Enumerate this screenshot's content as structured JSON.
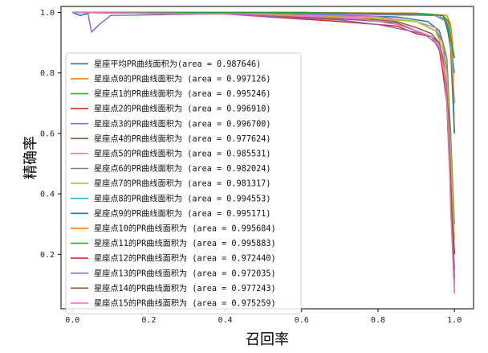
{
  "chart_data": {
    "type": "line",
    "xlabel": "召回率",
    "ylabel": "精确率",
    "xlim": [
      -0.03,
      1.05
    ],
    "ylim": [
      0.02,
      1.02
    ],
    "xticks": [
      0.0,
      0.2,
      0.4,
      0.6,
      0.8,
      1.0
    ],
    "xtick_labels": [
      "0.0",
      "0.2",
      "0.4",
      "0.6",
      "0.8",
      "1.0"
    ],
    "yticks": [
      0.2,
      0.4,
      0.6,
      0.8,
      1.0
    ],
    "ytick_labels": [
      "0.2",
      "0.4",
      "0.6",
      "0.8",
      "1.0"
    ],
    "legend_position": "lower-left",
    "series": [
      {
        "name": "星座平均PR曲线面积为(area = 0.987646)",
        "color": "#1f77b4",
        "points": [
          [
            0.0,
            1.0
          ],
          [
            0.02,
            0.99
          ],
          [
            0.05,
            1.0
          ],
          [
            0.4,
            0.998
          ],
          [
            0.7,
            0.99
          ],
          [
            0.85,
            0.985
          ],
          [
            0.93,
            0.97
          ],
          [
            0.96,
            0.94
          ],
          [
            0.97,
            0.9
          ],
          [
            0.98,
            0.8
          ],
          [
            0.99,
            0.6
          ],
          [
            0.995,
            0.3
          ],
          [
            1.0,
            0.1
          ]
        ]
      },
      {
        "name": "星座点0的PR曲线面积为 (area = 0.997126)",
        "color": "#ff7f0e",
        "points": [
          [
            0.0,
            1.0
          ],
          [
            0.5,
            1.0
          ],
          [
            0.9,
            0.998
          ],
          [
            0.98,
            0.99
          ],
          [
            0.99,
            0.96
          ],
          [
            0.995,
            0.9
          ],
          [
            0.998,
            0.7
          ],
          [
            1.0,
            0.6
          ]
        ]
      },
      {
        "name": "星座点1的PR曲线面积为 (area = 0.995246)",
        "color": "#2ca02c",
        "points": [
          [
            0.0,
            1.0
          ],
          [
            0.6,
            1.0
          ],
          [
            0.9,
            0.995
          ],
          [
            0.97,
            0.99
          ],
          [
            0.98,
            0.95
          ],
          [
            0.99,
            0.9
          ],
          [
            1.0,
            0.85
          ]
        ]
      },
      {
        "name": "星座点2的PR曲线面积为 (area = 0.996910)",
        "color": "#d62728",
        "points": [
          [
            0.0,
            1.0
          ],
          [
            0.6,
            1.0
          ],
          [
            0.92,
            0.995
          ],
          [
            0.97,
            0.99
          ],
          [
            0.985,
            0.96
          ],
          [
            0.99,
            0.9
          ],
          [
            1.0,
            0.8
          ]
        ]
      },
      {
        "name": "星座点3的PR曲线面积为 (area = 0.996700)",
        "color": "#9467bd",
        "points": [
          [
            0.0,
            1.0
          ],
          [
            0.04,
            1.0
          ],
          [
            0.05,
            0.935
          ],
          [
            0.07,
            0.96
          ],
          [
            0.1,
            0.99
          ],
          [
            0.5,
            0.998
          ],
          [
            0.95,
            0.99
          ],
          [
            0.98,
            0.97
          ],
          [
            0.99,
            0.9
          ],
          [
            1.0,
            0.7
          ]
        ]
      },
      {
        "name": "星座点4的PR曲线面积为 (area = 0.977624)",
        "color": "#8c564b",
        "points": [
          [
            0.0,
            1.0
          ],
          [
            0.5,
            0.995
          ],
          [
            0.75,
            0.98
          ],
          [
            0.85,
            0.97
          ],
          [
            0.9,
            0.95
          ],
          [
            0.94,
            0.93
          ],
          [
            0.96,
            0.9
          ],
          [
            0.97,
            0.85
          ],
          [
            0.98,
            0.75
          ],
          [
            0.99,
            0.5
          ],
          [
            1.0,
            0.2
          ]
        ]
      },
      {
        "name": "星座点5的PR曲线面积为 (area = 0.985531)",
        "color": "#e377c2",
        "points": [
          [
            0.0,
            1.0
          ],
          [
            0.5,
            0.995
          ],
          [
            0.8,
            0.985
          ],
          [
            0.9,
            0.97
          ],
          [
            0.95,
            0.95
          ],
          [
            0.97,
            0.9
          ],
          [
            0.98,
            0.7
          ],
          [
            0.985,
            0.62
          ],
          [
            0.99,
            0.55
          ],
          [
            1.0,
            0.07
          ]
        ]
      },
      {
        "name": "星座点6的PR曲线面积为 (area = 0.982024)",
        "color": "#7f7f7f",
        "points": [
          [
            0.0,
            1.0
          ],
          [
            0.5,
            0.995
          ],
          [
            0.8,
            0.98
          ],
          [
            0.9,
            0.97
          ],
          [
            0.95,
            0.94
          ],
          [
            0.97,
            0.9
          ],
          [
            0.98,
            0.85
          ],
          [
            0.99,
            0.6
          ],
          [
            1.0,
            0.3
          ]
        ]
      },
      {
        "name": "星座点7的PR曲线面积为 (area = 0.981317)",
        "color": "#bcbd22",
        "points": [
          [
            0.0,
            1.0
          ],
          [
            0.5,
            0.995
          ],
          [
            0.8,
            0.98
          ],
          [
            0.9,
            0.97
          ],
          [
            0.95,
            0.94
          ],
          [
            0.97,
            0.88
          ],
          [
            0.98,
            0.8
          ],
          [
            0.99,
            0.55
          ],
          [
            1.0,
            0.25
          ]
        ]
      },
      {
        "name": "星座点8的PR曲线面积为 (area = 0.994553)",
        "color": "#17becf",
        "points": [
          [
            0.0,
            1.0
          ],
          [
            0.6,
            1.0
          ],
          [
            0.9,
            0.995
          ],
          [
            0.96,
            0.99
          ],
          [
            0.98,
            0.97
          ],
          [
            0.99,
            0.9
          ],
          [
            1.0,
            0.8
          ]
        ]
      },
      {
        "name": "星座点9的PR曲线面积为 (area = 0.995171)",
        "color": "#1f77b4",
        "points": [
          [
            0.0,
            1.0
          ],
          [
            0.6,
            1.0
          ],
          [
            0.92,
            0.995
          ],
          [
            0.97,
            0.99
          ],
          [
            0.98,
            0.96
          ],
          [
            0.99,
            0.88
          ],
          [
            1.0,
            0.6
          ]
        ]
      },
      {
        "name": "星座点10的PR曲线面积为 (area = 0.995684)",
        "color": "#ff7f0e",
        "points": [
          [
            0.0,
            1.0
          ],
          [
            0.6,
            1.0
          ],
          [
            0.93,
            0.995
          ],
          [
            0.97,
            0.99
          ],
          [
            0.985,
            0.96
          ],
          [
            0.99,
            0.9
          ],
          [
            1.0,
            0.7
          ]
        ]
      },
      {
        "name": "星座点11的PR曲线面积为 (area = 0.995883)",
        "color": "#2ca02c",
        "points": [
          [
            0.0,
            1.0
          ],
          [
            0.6,
            1.0
          ],
          [
            0.92,
            0.995
          ],
          [
            0.97,
            0.99
          ],
          [
            0.985,
            0.97
          ],
          [
            0.99,
            0.92
          ],
          [
            1.0,
            0.85
          ]
        ]
      },
      {
        "name": "星座点12的PR曲线面积为 (area = 0.972440)",
        "color": "#d62728",
        "points": [
          [
            0.0,
            1.0
          ],
          [
            0.4,
            0.995
          ],
          [
            0.7,
            0.97
          ],
          [
            0.8,
            0.96
          ],
          [
            0.85,
            0.955
          ],
          [
            0.9,
            0.93
          ],
          [
            0.94,
            0.92
          ],
          [
            0.96,
            0.88
          ],
          [
            0.97,
            0.8
          ],
          [
            0.98,
            0.7
          ],
          [
            0.99,
            0.4
          ],
          [
            1.0,
            0.2
          ]
        ]
      },
      {
        "name": "星座点13的PR曲线面积为 (area = 0.972035)",
        "color": "#9467bd",
        "points": [
          [
            0.0,
            1.0
          ],
          [
            0.4,
            0.995
          ],
          [
            0.7,
            0.975
          ],
          [
            0.8,
            0.96
          ],
          [
            0.88,
            0.94
          ],
          [
            0.92,
            0.93
          ],
          [
            0.95,
            0.9
          ],
          [
            0.97,
            0.85
          ],
          [
            0.98,
            0.7
          ],
          [
            0.99,
            0.4
          ],
          [
            1.0,
            0.15
          ]
        ]
      },
      {
        "name": "星座点14的PR曲线面积为 (area = 0.977243)",
        "color": "#8c564b",
        "points": [
          [
            0.0,
            1.0
          ],
          [
            0.45,
            0.995
          ],
          [
            0.75,
            0.975
          ],
          [
            0.85,
            0.965
          ],
          [
            0.9,
            0.94
          ],
          [
            0.94,
            0.92
          ],
          [
            0.96,
            0.9
          ],
          [
            0.975,
            0.8
          ],
          [
            0.985,
            0.65
          ],
          [
            0.99,
            0.45
          ],
          [
            1.0,
            0.12
          ]
        ]
      },
      {
        "name": "星座点15的PR曲线面积为 (area = 0.975259)",
        "color": "#e377c2",
        "points": [
          [
            0.0,
            1.0
          ],
          [
            0.45,
            0.995
          ],
          [
            0.75,
            0.98
          ],
          [
            0.85,
            0.96
          ],
          [
            0.9,
            0.94
          ],
          [
            0.94,
            0.92
          ],
          [
            0.96,
            0.89
          ],
          [
            0.975,
            0.8
          ],
          [
            0.985,
            0.6
          ],
          [
            0.99,
            0.35
          ],
          [
            1.0,
            0.07
          ]
        ]
      }
    ]
  }
}
